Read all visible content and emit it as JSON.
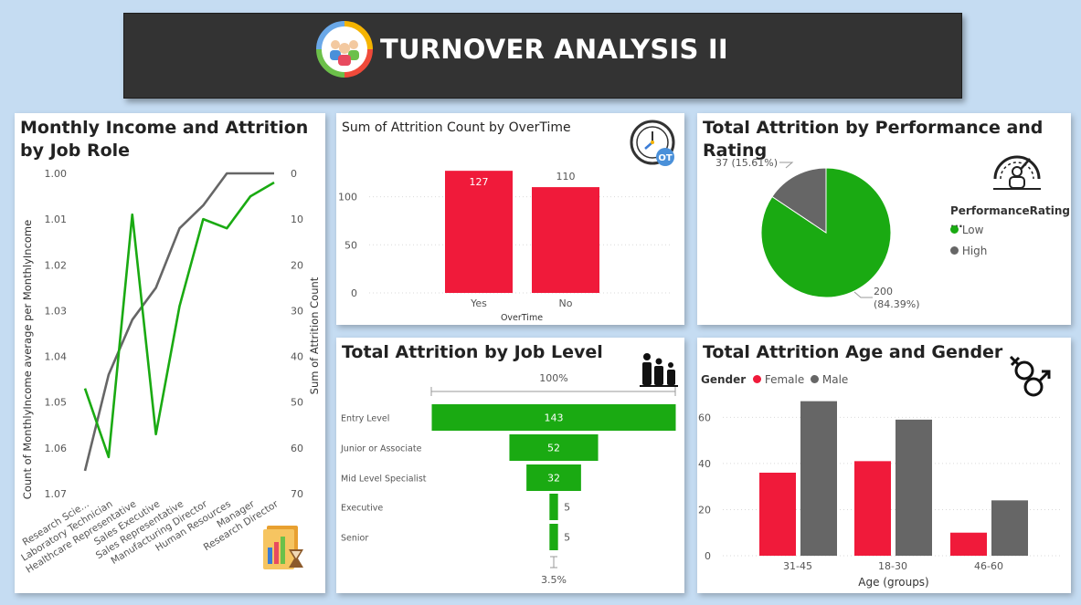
{
  "header": {
    "title": "TURNOVER ANALYSIS II"
  },
  "colors": {
    "green": "#1aaa12",
    "red": "#f01a3a",
    "gray": "#666666",
    "dark": "#333333"
  },
  "icons": [
    "people-logo-icon",
    "stopwatch-ot-icon",
    "speedometer-person-icon",
    "family-icon",
    "gender-icon",
    "chart-hourglass-icon"
  ],
  "cards": {
    "income": {
      "title": "Monthly Income and Attrition by Job Role",
      "chart_data": {
        "type": "line",
        "title": "Monthly Income and Attrition by Job Role",
        "categories": [
          "Research Scie...",
          "Laboratory Technician",
          "Healthcare Representative",
          "Sales Executive",
          "Sales Representative",
          "Manufacturing Director",
          "Human Resources",
          "Manager",
          "Research Director"
        ],
        "ylabel": "Count of MonthlyIncome average per MonthlyIncome",
        "y2label": "Sum of Attrition Count",
        "yticks": [
          "1.00",
          "1.01",
          "1.02",
          "1.03",
          "1.04",
          "1.05",
          "1.06",
          "1.07"
        ],
        "ylim": [
          1.0,
          1.07
        ],
        "y2ticks": [
          "0",
          "10",
          "20",
          "30",
          "40",
          "50",
          "60",
          "70"
        ],
        "y2lim": [
          0,
          70
        ],
        "series": [
          {
            "axis": "left",
            "color": "#666666",
            "values": [
              1.065,
              1.044,
              1.032,
              1.025,
              1.012,
              1.007,
              1.0,
              1.0,
              1.0
            ]
          },
          {
            "axis": "right",
            "color": "#1aaa12",
            "values": [
              47,
              62,
              9,
              57,
              29,
              10,
              12,
              5,
              2
            ]
          }
        ]
      }
    },
    "overtime": {
      "title": "Sum of Attrition Count by OverTime",
      "chart_data": {
        "type": "bar",
        "title": "Sum of Attrition Count by OverTime",
        "categories": [
          "Yes",
          "No"
        ],
        "values": [
          127,
          110
        ],
        "xlabel": "OverTime",
        "ylabel": "",
        "yticks": [
          "0",
          "50",
          "100"
        ],
        "ylim": [
          0,
          130
        ],
        "color": "#f01a3a"
      }
    },
    "performance": {
      "title": "Total Attrition by Performance and Rating",
      "legend_title": "PerformanceRating ...",
      "legend": [
        {
          "name": "Low",
          "color": "#1aaa12"
        },
        {
          "name": "High",
          "color": "#666666"
        }
      ],
      "chart_data": {
        "type": "pie",
        "title": "Total Attrition by Performance and Rating",
        "slices": [
          {
            "label": "Low",
            "value": 200,
            "pct": "84.39%",
            "color": "#1aaa12"
          },
          {
            "label": "High",
            "value": 37,
            "pct": "15.61%",
            "color": "#666666"
          }
        ],
        "labels": [
          "37 (15.61%)",
          "200",
          "(84.39%)"
        ],
        "legend_position": "right"
      }
    },
    "joblevel": {
      "title": "Total Attrition by Job Level",
      "top_label": "100%",
      "bottom_label": "3.5%",
      "chart_data": {
        "type": "bar",
        "subtype": "funnel",
        "title": "Total Attrition by Job Level",
        "categories": [
          "Entry Level",
          "Junior or Associate",
          "Mid Level Specialist",
          "Executive",
          "Senior"
        ],
        "values": [
          143,
          52,
          32,
          5,
          5
        ],
        "color": "#1aaa12"
      }
    },
    "age": {
      "title": "Total Attrition Age and Gender",
      "legend_title": "Gender",
      "legend": [
        {
          "name": "Female",
          "color": "#f01a3a"
        },
        {
          "name": "Male",
          "color": "#666666"
        }
      ],
      "chart_data": {
        "type": "bar",
        "title": "Total Attrition Age and Gender",
        "categories": [
          "31-45",
          "18-30",
          "46-60"
        ],
        "series": [
          {
            "name": "Female",
            "color": "#f01a3a",
            "values": [
              36,
              41,
              10
            ]
          },
          {
            "name": "Male",
            "color": "#666666",
            "values": [
              67,
              59,
              24
            ]
          }
        ],
        "xlabel": "Age (groups)",
        "ylabel": "",
        "yticks": [
          "0",
          "20",
          "40",
          "60"
        ],
        "ylim": [
          0,
          72
        ],
        "legend_position": "top-left"
      }
    }
  }
}
